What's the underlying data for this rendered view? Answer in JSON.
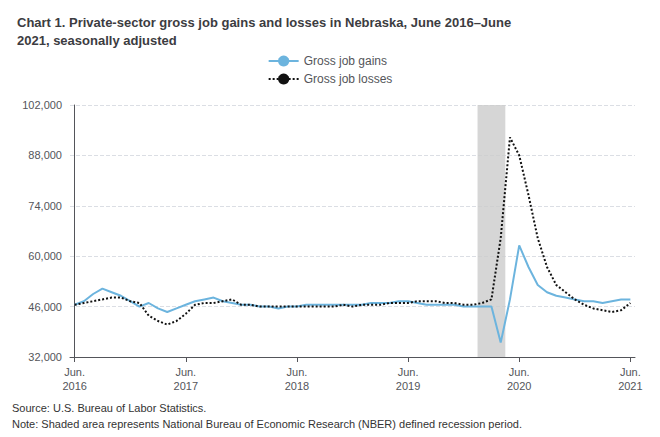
{
  "chart_data": {
    "type": "line",
    "title": "Chart 1. Private-sector gross job gains and losses in Nebraska, June 2016–June\n2021, seasonally adjusted",
    "source_note": "Source: U.S. Bureau of Labor Statistics.",
    "note": "Note: Shaded area represents National Bureau of Economic Research (NBER) defined recession period.",
    "categories": [
      "Jun.\n2016",
      null,
      null,
      null,
      null,
      null,
      null,
      null,
      null,
      null,
      null,
      null,
      "Jun.\n2017",
      null,
      null,
      null,
      null,
      null,
      null,
      null,
      null,
      null,
      null,
      null,
      "Jun.\n2018",
      null,
      null,
      null,
      null,
      null,
      null,
      null,
      null,
      null,
      null,
      null,
      "Jun.\n2019",
      null,
      null,
      null,
      null,
      null,
      null,
      null,
      null,
      null,
      null,
      null,
      "Jun.\n2020",
      null,
      null,
      null,
      null,
      null,
      null,
      null,
      null,
      null,
      null,
      null,
      "Jun.\n2021"
    ],
    "series": [
      {
        "name": "Gross job gains",
        "color": "#6CB4DE",
        "line_style": "solid",
        "values": [
          46500,
          47500,
          49500,
          51000,
          50000,
          49000,
          47500,
          46000,
          47000,
          45500,
          44500,
          45500,
          46500,
          47500,
          48000,
          48500,
          47500,
          47000,
          46500,
          46500,
          46000,
          46000,
          45500,
          46000,
          46000,
          46500,
          46500,
          46500,
          46500,
          46500,
          46500,
          46500,
          47000,
          47000,
          47000,
          47500,
          47500,
          47000,
          46500,
          46500,
          46500,
          46500,
          46000,
          46000,
          46000,
          46000,
          36000,
          48000,
          63000,
          57000,
          52000,
          50000,
          49000,
          48500,
          48000,
          47500,
          47500,
          47000,
          47500,
          48000,
          48000
        ]
      },
      {
        "name": "Gross job losses",
        "color": "#111111",
        "line_style": "dotted",
        "values": [
          46500,
          47000,
          47500,
          48000,
          48500,
          48500,
          47500,
          47000,
          43500,
          42000,
          41000,
          42000,
          44000,
          46500,
          47000,
          47000,
          47500,
          48000,
          46500,
          46500,
          46000,
          46000,
          46000,
          46000,
          46000,
          46000,
          46000,
          46000,
          46000,
          46500,
          46000,
          46500,
          46500,
          46500,
          47000,
          47000,
          47000,
          47500,
          47500,
          47500,
          47000,
          47000,
          46500,
          46500,
          47000,
          48000,
          65000,
          93000,
          88000,
          77000,
          65000,
          57000,
          52000,
          50000,
          48000,
          46500,
          45500,
          45000,
          44500,
          45000,
          47000
        ]
      }
    ],
    "shaded_area": {
      "start": 43.5,
      "end": 46.5,
      "color": "#cccccc"
    },
    "ylim": [
      32000,
      102000
    ],
    "yticks": [
      {
        "value": 32000,
        "label": "32,000"
      },
      {
        "value": 46000,
        "label": "46,000"
      },
      {
        "value": 60000,
        "label": "60,000"
      },
      {
        "value": 74000,
        "label": "74,000"
      },
      {
        "value": 88000,
        "label": "88,000"
      },
      {
        "value": 102000,
        "label": "102,000"
      }
    ],
    "grid": true,
    "legend": "top"
  }
}
